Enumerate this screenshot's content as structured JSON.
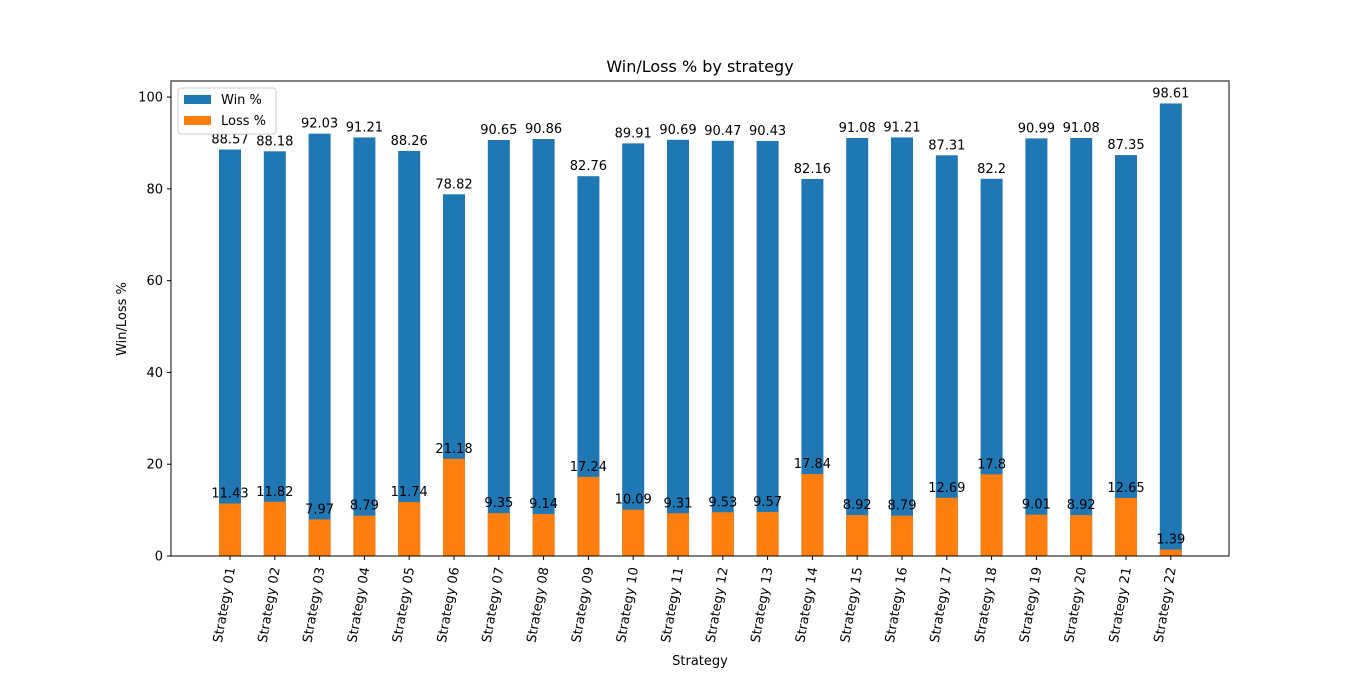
{
  "chart_data": {
    "type": "bar",
    "stacked": true,
    "title": "Win/Loss % by strategy",
    "xlabel": "Strategy",
    "ylabel": "Win/Loss %",
    "ylim": [
      0,
      103.5
    ],
    "yticks": [
      0,
      20,
      40,
      60,
      80,
      100
    ],
    "grid": false,
    "legend_position": "top-left",
    "categories": [
      "Strategy 01",
      "Strategy 02",
      "Strategy 03",
      "Strategy 04",
      "Strategy 05",
      "Strategy 06",
      "Strategy 07",
      "Strategy 08",
      "Strategy 09",
      "Strategy 10",
      "Strategy 11",
      "Strategy 12",
      "Strategy 13",
      "Strategy 14",
      "Strategy 15",
      "Strategy 16",
      "Strategy 17",
      "Strategy 18",
      "Strategy 19",
      "Strategy 20",
      "Strategy 21",
      "Strategy 22"
    ],
    "series": [
      {
        "name": "Win %",
        "color": "#1f77b4",
        "values": [
          88.57,
          88.18,
          92.03,
          91.21,
          88.26,
          78.82,
          90.65,
          90.86,
          82.76,
          89.91,
          90.69,
          90.47,
          90.43,
          82.16,
          91.08,
          91.21,
          87.31,
          82.2,
          90.99,
          91.08,
          87.35,
          98.61
        ]
      },
      {
        "name": "Loss %",
        "color": "#ff7f0e",
        "values": [
          11.43,
          11.82,
          7.97,
          8.79,
          11.74,
          21.18,
          9.35,
          9.14,
          17.24,
          10.09,
          9.31,
          9.53,
          9.57,
          17.84,
          8.92,
          8.79,
          12.69,
          17.8,
          9.01,
          8.92,
          12.65,
          1.39
        ]
      }
    ]
  }
}
